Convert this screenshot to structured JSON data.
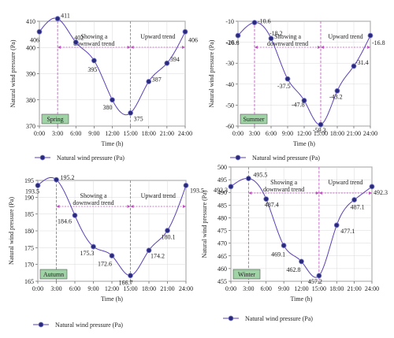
{
  "colors": {
    "curve": "#5b3fb5",
    "marker_fill": "#2a2a7a",
    "marker_edge": "#7d7dd6",
    "arrow": "#c050c0",
    "divider": "#c050c0",
    "season_box": "#9fd3a5"
  },
  "chart_data": [
    {
      "type": "line",
      "season": "Spring",
      "xlabel": "Time (h)",
      "ylabel": "Natural wind pressure (Pa)",
      "x": [
        "0:00",
        "3:00",
        "6:00",
        "9:00",
        "12:00",
        "15:00",
        "18:00",
        "21:00",
        "24:00"
      ],
      "series": [
        {
          "name": "Natural wind pressure (Pa)",
          "values": [
            406,
            411,
            402,
            395,
            380,
            375,
            387,
            394,
            406
          ]
        }
      ],
      "data_labels": [
        "406",
        "411",
        "402",
        "395",
        "380",
        "375",
        "387",
        "394",
        "406"
      ],
      "ylim": [
        370,
        410
      ],
      "yticks": [
        370,
        380,
        390,
        400,
        410
      ],
      "annotations": {
        "left": "Showing a\ndownward trend",
        "right": "Upward trend"
      }
    },
    {
      "type": "line",
      "season": "Summer",
      "xlabel": "Time (h)",
      "ylabel": "Natural wind pressure (Pa)",
      "x": [
        "0:00",
        "3:00",
        "6:00",
        "9:00",
        "12:00",
        "15:00",
        "18:00",
        "21:00",
        "24:00"
      ],
      "series": [
        {
          "name": "Natural wind pressure (Pa)",
          "values": [
            -16.8,
            -10.6,
            -18.2,
            -37.5,
            -47.8,
            -59.3,
            -43.2,
            -31.4,
            -16.8
          ]
        }
      ],
      "data_labels": [
        "-16.8",
        "-10.6",
        "-18.2",
        "-37.5",
        "-47.8",
        "-59.3",
        "-43.2",
        "-31.4",
        "-16.8"
      ],
      "ylim": [
        -60,
        -10
      ],
      "yticks": [
        -60,
        -50,
        -40,
        -30,
        -20,
        -10
      ],
      "annotations": {
        "left": "Showing a\ndownward trend",
        "right": "Upward trend"
      }
    },
    {
      "type": "line",
      "season": "Autumn",
      "xlabel": "Time (h)",
      "ylabel": "Natural wind pressure (Pa)",
      "x": [
        "0:00",
        "3:00",
        "6:00",
        "9:00",
        "12:00",
        "15:00",
        "18:00",
        "21:00",
        "24:00"
      ],
      "series": [
        {
          "name": "Natural wind pressure (Pa)",
          "values": [
            193.5,
            195.2,
            184.6,
            175.3,
            172.6,
            166.7,
            174.2,
            180.1,
            193.5
          ]
        }
      ],
      "data_labels": [
        "193.5",
        "195.2",
        "184.6",
        "175.3",
        "172.6",
        "166.7",
        "174.2",
        "180.1",
        "193.5"
      ],
      "ylim": [
        165,
        195
      ],
      "yticks": [
        165,
        170,
        175,
        180,
        185,
        190,
        195
      ],
      "annotations": {
        "left": "Showing a\ndownward trend",
        "right": "Upward trend"
      }
    },
    {
      "type": "line",
      "season": "Winter",
      "xlabel": "Time (h)",
      "ylabel": "Natural wind pressure (Pa)",
      "x": [
        "0:00",
        "3:00",
        "6:00",
        "9:00",
        "12:00",
        "15:00",
        "18:00",
        "21:00",
        "24:00"
      ],
      "series": [
        {
          "name": "Natural wind pressure (Pa)",
          "values": [
            492.3,
            495.5,
            487.4,
            469.1,
            462.8,
            457.2,
            477.1,
            487.1,
            492.3
          ]
        }
      ],
      "data_labels": [
        "492.3",
        "495.5",
        "487.4",
        "469.1",
        "462.8",
        "457.2",
        "477.1",
        "487.1",
        "492.3"
      ],
      "ylim": [
        455,
        500
      ],
      "yticks": [
        455,
        460,
        465,
        470,
        475,
        480,
        485,
        490,
        495,
        500
      ],
      "annotations": {
        "left": "Showing a\ndownward trend",
        "right": "Upward trend"
      }
    }
  ]
}
